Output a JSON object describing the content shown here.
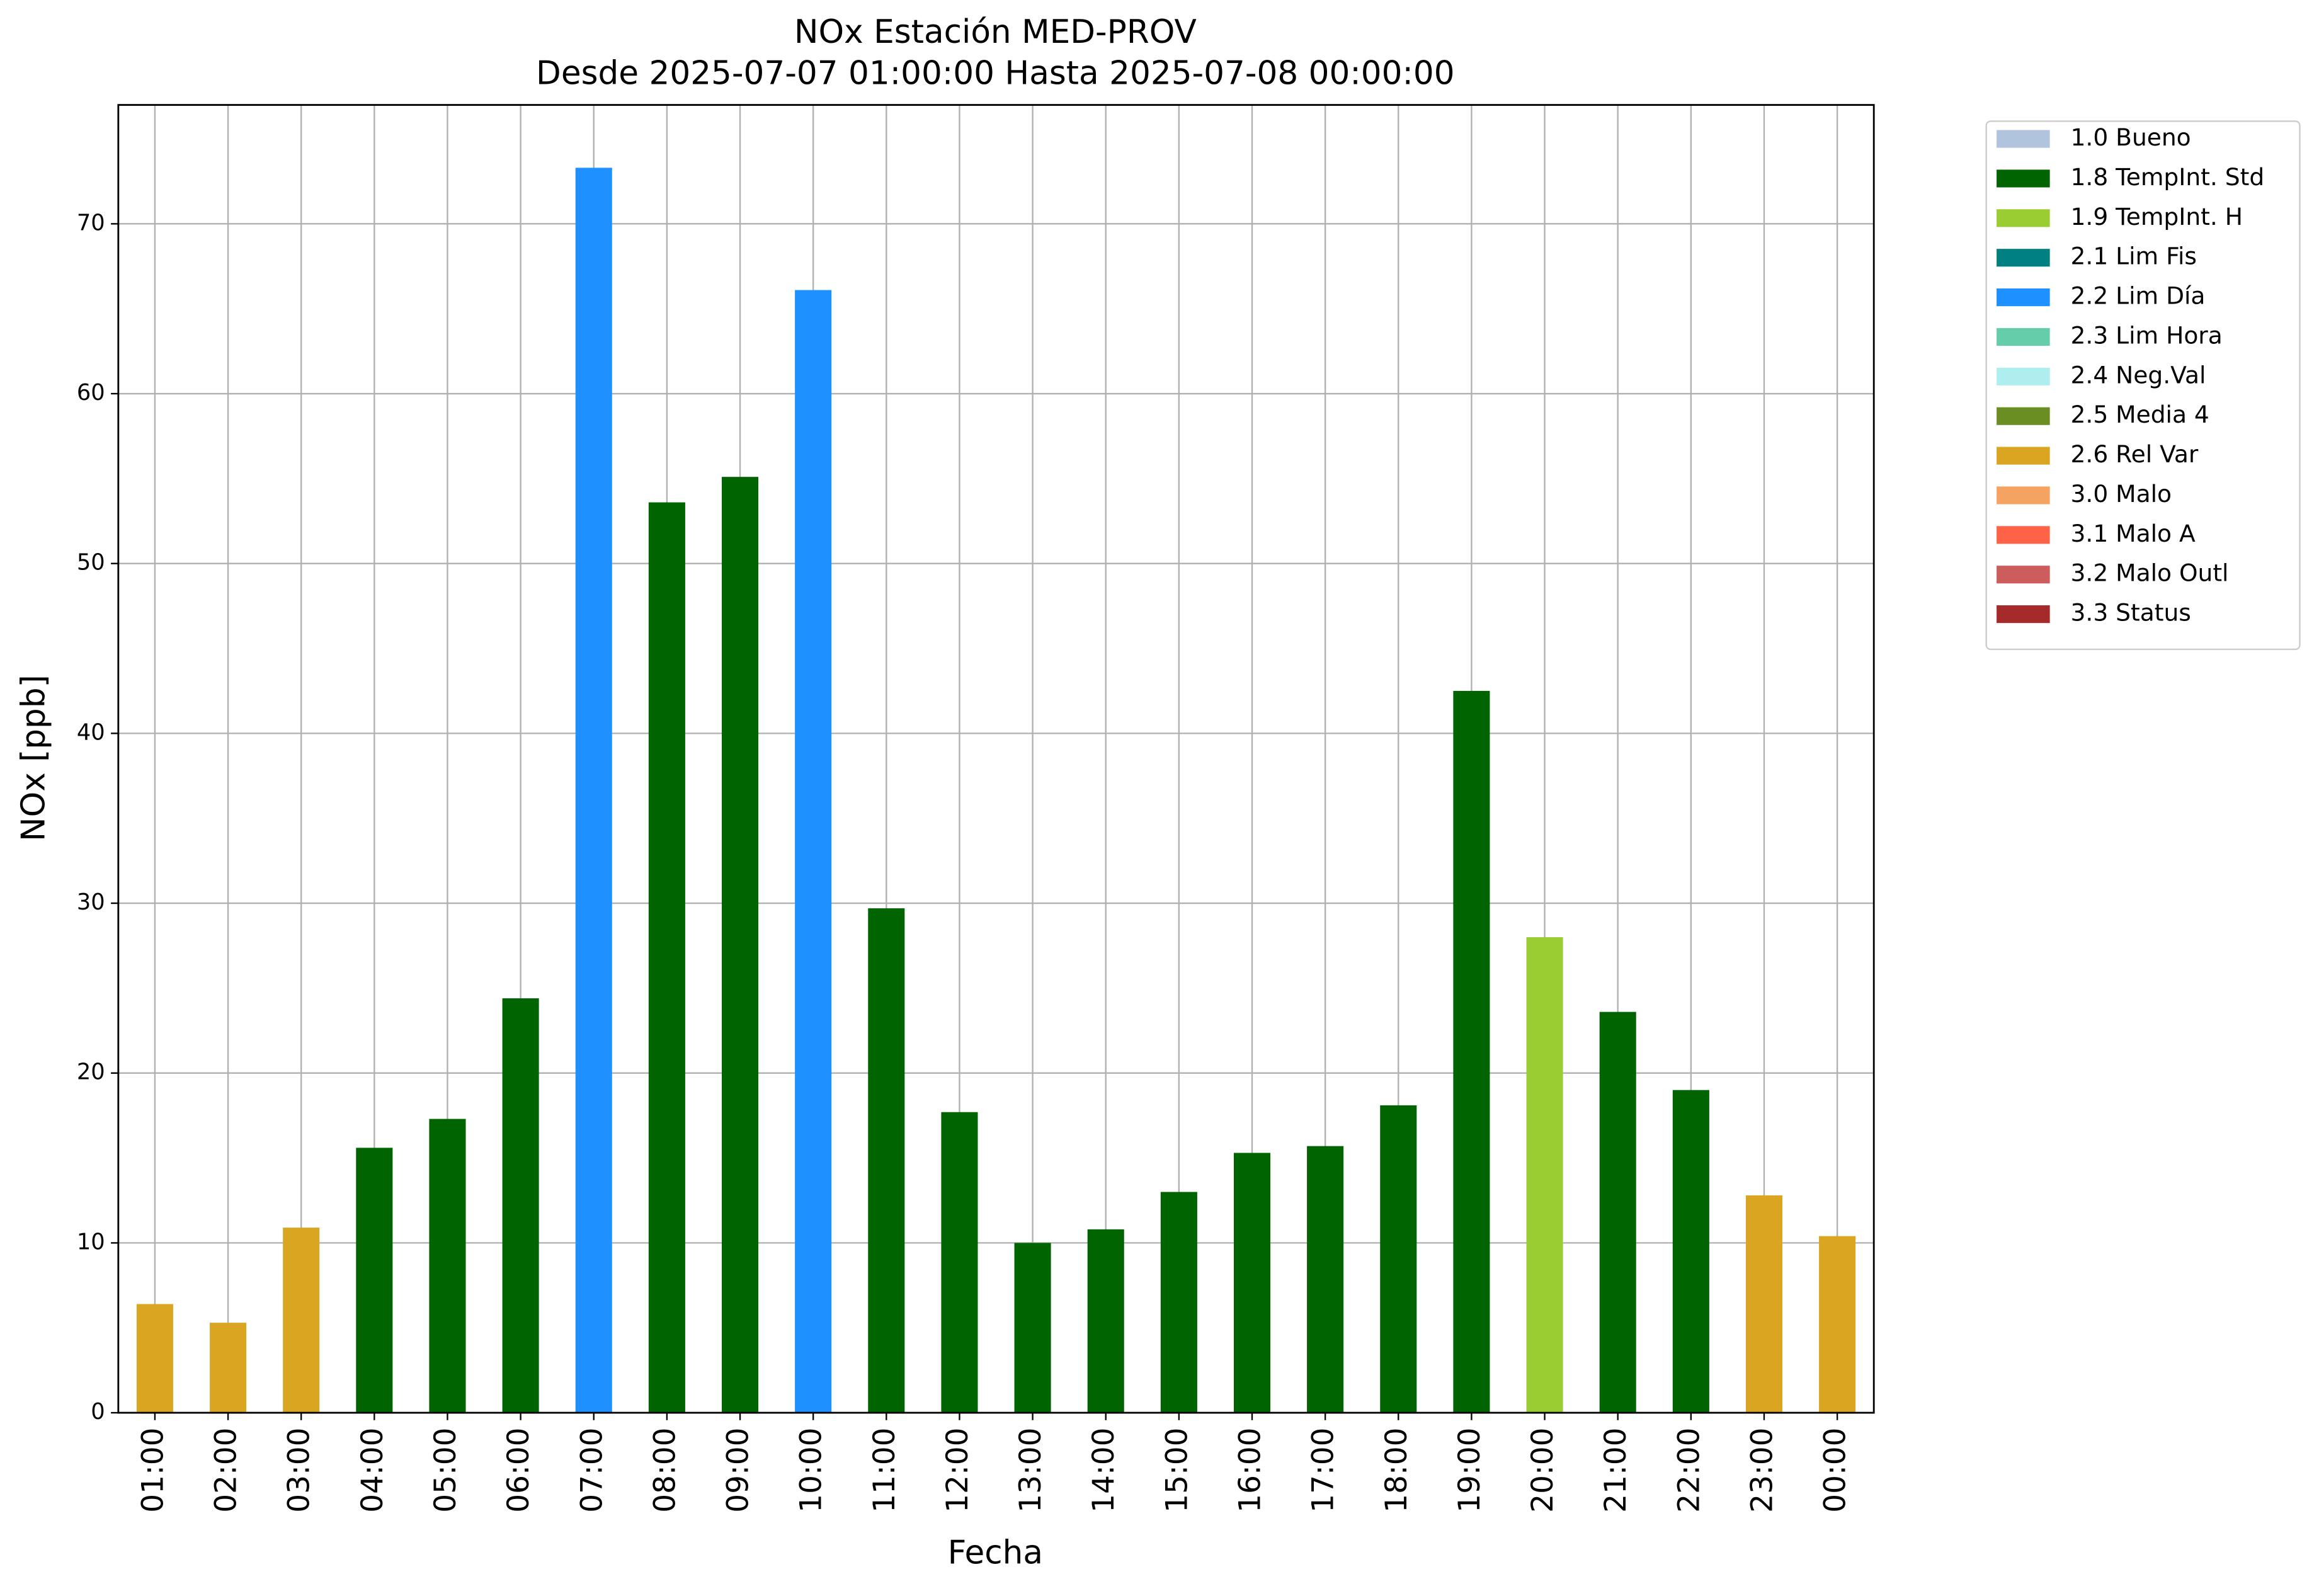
{
  "chart_data": {
    "type": "bar",
    "title": "NOx Estación MED-PROV",
    "subtitle": "Desde 2025-07-07 01:00:00 Hasta 2025-07-08 00:00:00",
    "xlabel": "Fecha",
    "ylabel": "NOx [ppb]",
    "categories": [
      "01:00",
      "02:00",
      "03:00",
      "04:00",
      "05:00",
      "06:00",
      "07:00",
      "08:00",
      "09:00",
      "10:00",
      "11:00",
      "12:00",
      "13:00",
      "14:00",
      "15:00",
      "16:00",
      "17:00",
      "18:00",
      "19:00",
      "20:00",
      "21:00",
      "22:00",
      "23:00",
      "00:00"
    ],
    "series": [
      {
        "name": "1.0 Bueno",
        "color": "#b0c4de",
        "values": [
          null,
          null,
          null,
          null,
          null,
          null,
          null,
          null,
          null,
          null,
          null,
          null,
          null,
          null,
          null,
          null,
          null,
          null,
          null,
          null,
          null,
          null,
          null,
          null
        ]
      },
      {
        "name": "1.8 TempInt. Std",
        "color": "#006400",
        "values": [
          null,
          null,
          null,
          15.6,
          17.3,
          24.4,
          null,
          53.6,
          55.1,
          null,
          29.7,
          17.7,
          10,
          10.8,
          13,
          15.3,
          15.7,
          18.1,
          42.5,
          null,
          23.6,
          19,
          null,
          null
        ]
      },
      {
        "name": "1.9 TempInt. H",
        "color": "#9acd32",
        "values": [
          null,
          null,
          null,
          null,
          null,
          null,
          null,
          null,
          null,
          null,
          null,
          null,
          null,
          null,
          null,
          null,
          null,
          null,
          null,
          28,
          null,
          null,
          null,
          null
        ]
      },
      {
        "name": "2.1 Lim Fis",
        "color": "#008080",
        "values": [
          null,
          null,
          null,
          null,
          null,
          null,
          null,
          null,
          null,
          null,
          null,
          null,
          null,
          null,
          null,
          null,
          null,
          null,
          null,
          null,
          null,
          null,
          null,
          null
        ]
      },
      {
        "name": "2.2 Lim Día",
        "color": "#1e90ff",
        "values": [
          null,
          null,
          null,
          null,
          null,
          null,
          73.3,
          null,
          null,
          66.1,
          null,
          null,
          null,
          null,
          null,
          null,
          null,
          null,
          null,
          null,
          null,
          null,
          null,
          null
        ]
      },
      {
        "name": "2.3 Lim Hora",
        "color": "#66cdaa",
        "values": [
          null,
          null,
          null,
          null,
          null,
          null,
          null,
          null,
          null,
          null,
          null,
          null,
          null,
          null,
          null,
          null,
          null,
          null,
          null,
          null,
          null,
          null,
          null,
          null
        ]
      },
      {
        "name": "2.4 Neg.Val",
        "color": "#afeeee",
        "values": [
          null,
          null,
          null,
          null,
          null,
          null,
          null,
          null,
          null,
          null,
          null,
          null,
          null,
          null,
          null,
          null,
          null,
          null,
          null,
          null,
          null,
          null,
          null,
          null
        ]
      },
      {
        "name": "2.5 Media 4",
        "color": "#6b8e23",
        "values": [
          null,
          null,
          null,
          null,
          null,
          null,
          null,
          null,
          null,
          null,
          null,
          null,
          null,
          null,
          null,
          null,
          null,
          null,
          null,
          null,
          null,
          null,
          null,
          null
        ]
      },
      {
        "name": "2.6 Rel Var",
        "color": "#daa520",
        "values": [
          6.4,
          5.3,
          10.9,
          null,
          null,
          null,
          null,
          null,
          null,
          null,
          null,
          null,
          null,
          null,
          null,
          null,
          null,
          null,
          null,
          null,
          null,
          null,
          12.8,
          10.4
        ]
      },
      {
        "name": "3.0 Malo",
        "color": "#f4a460",
        "values": [
          null,
          null,
          null,
          null,
          null,
          null,
          null,
          null,
          null,
          null,
          null,
          null,
          null,
          null,
          null,
          null,
          null,
          null,
          null,
          null,
          null,
          null,
          null,
          null
        ]
      },
      {
        "name": "3.1 Malo A",
        "color": "#ff6347",
        "values": [
          null,
          null,
          null,
          null,
          null,
          null,
          null,
          null,
          null,
          null,
          null,
          null,
          null,
          null,
          null,
          null,
          null,
          null,
          null,
          null,
          null,
          null,
          null,
          null
        ]
      },
      {
        "name": "3.2 Malo Outl",
        "color": "#cd5c5c",
        "values": [
          null,
          null,
          null,
          null,
          null,
          null,
          null,
          null,
          null,
          null,
          null,
          null,
          null,
          null,
          null,
          null,
          null,
          null,
          null,
          null,
          null,
          null,
          null,
          null
        ]
      },
      {
        "name": "3.3 Status",
        "color": "#a52a2a",
        "values": [
          null,
          null,
          null,
          null,
          null,
          null,
          null,
          null,
          null,
          null,
          null,
          null,
          null,
          null,
          null,
          null,
          null,
          null,
          null,
          null,
          null,
          null,
          null,
          null
        ]
      }
    ],
    "ylim": [
      0,
      77
    ],
    "yticks": [
      0,
      10,
      20,
      30,
      40,
      50,
      60,
      70
    ],
    "grid": true,
    "legend": "outside-right"
  }
}
